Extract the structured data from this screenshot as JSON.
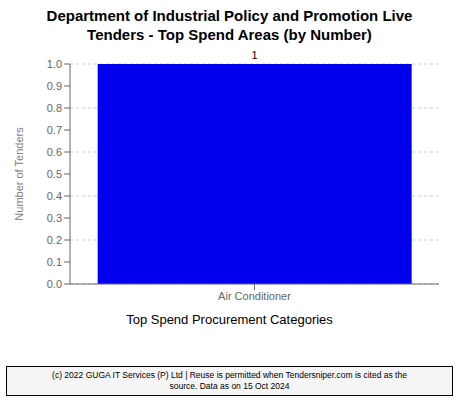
{
  "chart_data": {
    "type": "bar",
    "title": "Department of Industrial Policy and Promotion Live\nTenders - Top Spend Areas (by Number)",
    "categories": [
      "Air Conditioner"
    ],
    "values": [
      1
    ],
    "color": "#0000ee",
    "xlabel": "Top Spend Procurement Categories",
    "ylabel": "Number of Tenders",
    "ylim": [
      0.0,
      1.0
    ],
    "yticks": [
      {
        "value": 0.0,
        "label": "0.0"
      },
      0.1,
      0.2,
      0.3,
      0.4,
      0.5,
      0.6,
      0.7,
      0.8,
      0.9,
      {
        "value": 1.0,
        "label": "1.0"
      }
    ],
    "grid": true,
    "data_labels": true,
    "annotations": [
      "(c) 2022 GUGA IT Services (P) Ltd | Reuse is permitted when Tendersniper.com is cited as the",
      "source. Data as on 15 Oct 2024"
    ]
  }
}
